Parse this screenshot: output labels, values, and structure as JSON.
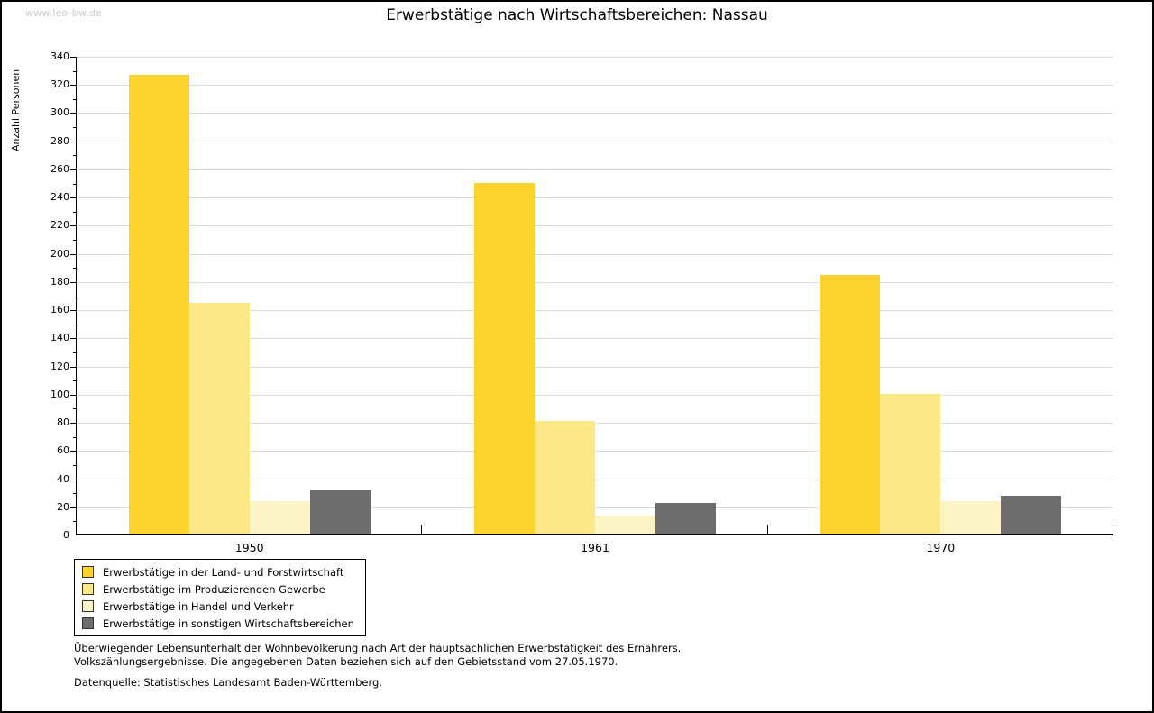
{
  "watermark": "www.leo-bw.de",
  "chart_data": {
    "type": "bar",
    "title": "Erwerbstätige nach Wirtschaftsbereichen: Nassau",
    "xlabel": "",
    "ylabel": "Anzahl Personen",
    "categories": [
      "1950",
      "1961",
      "1970"
    ],
    "series": [
      {
        "name": "Erwerbstätige in der Land- und Forstwirtschaft",
        "color": "#fcd32d",
        "values": [
          326,
          249,
          184
        ]
      },
      {
        "name": "Erwerbstätige im Produzierenden Gewerbe",
        "color": "#fbe886",
        "values": [
          164,
          80,
          99
        ]
      },
      {
        "name": "Erwerbstätige in Handel und Verkehr",
        "color": "#fcf4c6",
        "values": [
          23,
          13,
          23
        ]
      },
      {
        "name": "Erwerbstätige in sonstigen Wirtschaftsbereichen",
        "color": "#6d6d6d",
        "values": [
          31,
          22,
          27
        ]
      }
    ],
    "ylim": [
      0,
      340
    ],
    "ytick_step": 20,
    "ytick_minor_step": 10,
    "grid": true,
    "legend_position": "bottom-left",
    "gridline_color": "#dcdcdc"
  },
  "footnotes": {
    "line1": "Überwiegender Lebensunterhalt der Wohnbevölkerung nach Art der hauptsächlichen Erwerbstätigkeit des Ernährers.",
    "line2": "Volkszählungsergebnisse. Die angegebenen Daten beziehen sich auf den Gebietsstand vom 27.05.1970.",
    "source": "Datenquelle: Statistisches Landesamt Baden-Württemberg."
  }
}
